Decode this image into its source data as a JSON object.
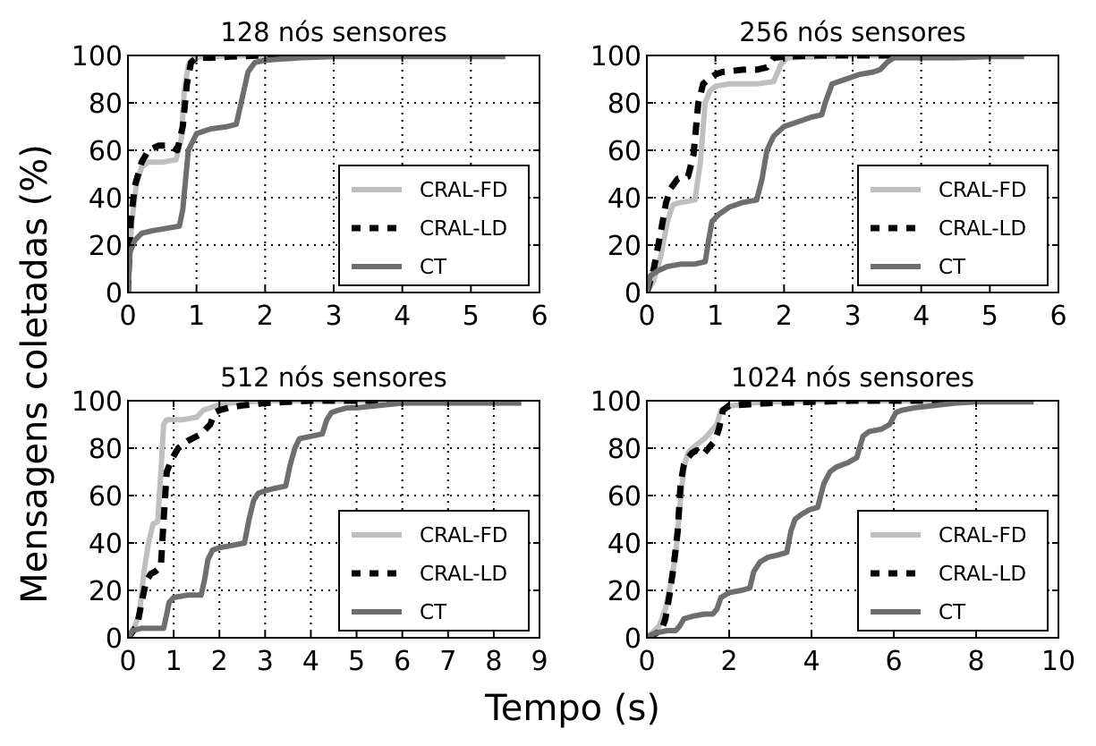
{
  "figure": {
    "xlabel": "Tempo (s)",
    "ylabel": "Mensagens coletadas (%)"
  },
  "colors": {
    "CRAL-FD": "#bfbfbf",
    "CRAL-LD": "#000000",
    "CT": "#6e6e6e"
  },
  "chart_data": [
    {
      "type": "line",
      "title": "128 nós sensores",
      "xlim": [
        0,
        6
      ],
      "ylim": [
        0,
        100
      ],
      "xticks": [
        0,
        1,
        2,
        3,
        4,
        5,
        6
      ],
      "yticks": [
        0,
        20,
        40,
        60,
        80,
        100
      ],
      "grid": true,
      "legend_position": "lower-right",
      "series": [
        {
          "name": "CRAL-FD",
          "style": "solid",
          "x": [
            0,
            0.05,
            0.12,
            0.2,
            0.3,
            0.5,
            0.7,
            0.78,
            0.82,
            0.88,
            0.95,
            1.1,
            1.5,
            2,
            3,
            4,
            5,
            5.5
          ],
          "y": [
            0,
            28,
            45,
            53,
            55,
            55,
            56,
            65,
            85,
            96,
            99,
            99.5,
            99.8,
            100,
            100,
            100,
            100,
            100
          ]
        },
        {
          "name": "CRAL-LD",
          "style": "dashed",
          "x": [
            0,
            0.04,
            0.1,
            0.2,
            0.3,
            0.45,
            0.6,
            0.72,
            0.8,
            0.86,
            0.92,
            1.0,
            1.2,
            1.5,
            2,
            3,
            4,
            5,
            5.5
          ],
          "y": [
            0,
            30,
            45,
            55,
            60,
            62,
            62,
            60,
            70,
            88,
            97,
            99,
            99,
            99.5,
            100,
            100,
            100,
            100,
            100
          ]
        },
        {
          "name": "CT",
          "style": "solid",
          "x": [
            0,
            0.03,
            0.1,
            0.2,
            0.35,
            0.55,
            0.75,
            0.8,
            0.88,
            1.0,
            1.2,
            1.45,
            1.58,
            1.65,
            1.75,
            1.85,
            2.0,
            2.5,
            3,
            4,
            5,
            5.5
          ],
          "y": [
            0,
            17,
            22,
            25,
            26,
            27,
            28,
            35,
            60,
            67,
            69,
            70,
            71,
            80,
            93,
            97,
            98,
            99,
            99.5,
            99.5,
            99.5,
            99.5
          ]
        }
      ]
    },
    {
      "type": "line",
      "title": "256 nós sensores",
      "xlim": [
        0,
        6
      ],
      "ylim": [
        0,
        100
      ],
      "xticks": [
        0,
        1,
        2,
        3,
        4,
        5,
        6
      ],
      "yticks": [
        0,
        20,
        40,
        60,
        80,
        100
      ],
      "grid": true,
      "legend_position": "lower-right",
      "series": [
        {
          "name": "CRAL-FD",
          "style": "solid",
          "x": [
            0,
            0.1,
            0.2,
            0.3,
            0.38,
            0.5,
            0.7,
            0.78,
            0.85,
            0.92,
            1.0,
            1.2,
            1.6,
            1.85,
            1.95,
            2.05,
            2.5,
            3,
            4,
            5,
            5.5
          ],
          "y": [
            0,
            5,
            15,
            30,
            37,
            38,
            39,
            55,
            80,
            85,
            87,
            88,
            88,
            89,
            96,
            99,
            99.5,
            100,
            100,
            100,
            100
          ]
        },
        {
          "name": "CRAL-LD",
          "style": "dashed",
          "x": [
            0,
            0.1,
            0.2,
            0.28,
            0.35,
            0.45,
            0.6,
            0.68,
            0.75,
            0.82,
            0.9,
            1.0,
            1.1,
            1.4,
            1.6,
            1.75,
            1.85,
            2.0,
            2.5,
            3,
            4,
            5
          ],
          "y": [
            0,
            10,
            25,
            38,
            44,
            48,
            49,
            58,
            80,
            88,
            90,
            92,
            93,
            94,
            94,
            95,
            99,
            99.5,
            100,
            100,
            100,
            100
          ]
        },
        {
          "name": "CT",
          "style": "solid",
          "x": [
            0,
            0.05,
            0.15,
            0.3,
            0.5,
            0.7,
            0.85,
            0.9,
            0.95,
            1.05,
            1.2,
            1.4,
            1.6,
            1.68,
            1.75,
            1.85,
            2.0,
            2.2,
            2.4,
            2.55,
            2.6,
            2.7,
            2.9,
            3.1,
            3.3,
            3.4,
            3.5,
            3.6,
            4,
            4.5,
            5,
            5.5
          ],
          "y": [
            0,
            7,
            9,
            11,
            12,
            12,
            13,
            22,
            30,
            33,
            36,
            38,
            39,
            48,
            60,
            66,
            70,
            72,
            74,
            75,
            80,
            88,
            90,
            92,
            93,
            94,
            97,
            99,
            99,
            99,
            99.5,
            99.5
          ]
        }
      ]
    },
    {
      "type": "line",
      "title": "512 nós sensores",
      "xlim": [
        0,
        9
      ],
      "ylim": [
        0,
        100
      ],
      "xticks": [
        0,
        1,
        2,
        3,
        4,
        5,
        6,
        7,
        8,
        9
      ],
      "yticks": [
        0,
        20,
        40,
        60,
        80,
        100
      ],
      "grid": true,
      "legend_position": "lower-right",
      "series": [
        {
          "name": "CRAL-FD",
          "style": "solid",
          "x": [
            0,
            0.15,
            0.25,
            0.35,
            0.45,
            0.55,
            0.65,
            0.72,
            0.78,
            0.85,
            0.95,
            1.2,
            1.5,
            1.65,
            1.8,
            1.95,
            2.2,
            3,
            4,
            5,
            6,
            7,
            8,
            8.6
          ],
          "y": [
            0,
            5,
            10,
            28,
            40,
            48,
            49,
            70,
            90,
            92,
            92,
            92,
            93,
            96,
            97,
            98,
            99,
            100,
            100,
            100,
            100,
            100,
            100,
            100
          ]
        },
        {
          "name": "CRAL-LD",
          "style": "dashed",
          "x": [
            0,
            0.2,
            0.3,
            0.4,
            0.5,
            0.6,
            0.72,
            0.78,
            0.85,
            0.95,
            1.1,
            1.3,
            1.5,
            1.6,
            1.7,
            1.8,
            1.9,
            2.0,
            2.2,
            2.5,
            3,
            4,
            5,
            6,
            7,
            8,
            8.6
          ],
          "y": [
            0,
            5,
            15,
            24,
            27,
            28,
            30,
            50,
            70,
            75,
            80,
            83,
            85,
            86,
            88,
            90,
            95,
            96,
            97,
            98,
            99,
            100,
            100,
            100,
            100,
            100,
            100
          ]
        },
        {
          "name": "CT",
          "style": "solid",
          "x": [
            0,
            0.1,
            0.3,
            0.6,
            0.78,
            0.85,
            0.9,
            1.0,
            1.3,
            1.6,
            1.68,
            1.75,
            1.85,
            2.0,
            2.3,
            2.55,
            2.65,
            2.75,
            2.85,
            3.0,
            3.2,
            3.45,
            3.55,
            3.65,
            3.75,
            4.0,
            4.25,
            4.35,
            4.45,
            4.6,
            4.8,
            5.0,
            5.5,
            6,
            7,
            8,
            8.6
          ],
          "y": [
            0,
            3,
            4,
            4,
            4,
            10,
            15,
            17,
            18,
            18,
            25,
            33,
            37,
            38,
            39,
            40,
            50,
            58,
            61,
            62,
            63,
            64,
            73,
            80,
            84,
            85,
            86,
            92,
            95,
            96,
            97,
            97,
            98,
            99,
            99,
            99,
            99
          ]
        }
      ]
    },
    {
      "type": "line",
      "title": "1024 nós sensores",
      "xlim": [
        0,
        10
      ],
      "ylim": [
        0,
        100
      ],
      "xticks": [
        0,
        2,
        4,
        6,
        8,
        10
      ],
      "yticks": [
        0,
        20,
        40,
        60,
        80,
        100
      ],
      "grid": true,
      "legend_position": "lower-right",
      "series": [
        {
          "name": "CRAL-FD",
          "style": "solid",
          "x": [
            0,
            0.3,
            0.45,
            0.6,
            0.7,
            0.8,
            0.9,
            1.0,
            1.1,
            1.25,
            1.4,
            1.55,
            1.7,
            1.8,
            1.9,
            2.1,
            2.5,
            3,
            4,
            5,
            6,
            7,
            8,
            9,
            9.4
          ],
          "y": [
            0,
            5,
            12,
            25,
            35,
            55,
            72,
            78,
            80,
            82,
            84,
            87,
            90,
            96,
            97,
            98,
            99,
            99.5,
            100,
            100,
            100,
            100,
            100,
            100,
            100
          ]
        },
        {
          "name": "CRAL-LD",
          "style": "dashed",
          "x": [
            0,
            0.35,
            0.45,
            0.55,
            0.65,
            0.75,
            0.82,
            0.9,
            1.0,
            1.1,
            1.2,
            1.35,
            1.5,
            1.65,
            1.75,
            1.85,
            2.0,
            2.5,
            3,
            4,
            5,
            6,
            7,
            8,
            9,
            9.4
          ],
          "y": [
            0,
            3,
            8,
            18,
            30,
            45,
            65,
            73,
            76,
            78,
            79,
            77,
            80,
            83,
            88,
            96,
            98,
            98.5,
            99,
            99.5,
            100,
            100,
            100,
            100,
            100,
            100
          ]
        },
        {
          "name": "CT",
          "style": "solid",
          "x": [
            0,
            0.2,
            0.5,
            0.7,
            0.8,
            0.9,
            1.1,
            1.4,
            1.6,
            1.7,
            1.8,
            2.0,
            2.3,
            2.5,
            2.6,
            2.75,
            2.95,
            3.2,
            3.4,
            3.5,
            3.6,
            3.75,
            3.95,
            4.15,
            4.3,
            4.45,
            4.6,
            4.9,
            5.1,
            5.25,
            5.4,
            5.7,
            5.9,
            6.05,
            6.2,
            6.5,
            7,
            7.5,
            8,
            9,
            9.4
          ],
          "y": [
            0,
            2,
            3,
            3,
            5,
            8,
            9,
            10,
            10,
            12,
            17,
            19,
            20,
            21,
            28,
            32,
            34,
            35,
            36,
            45,
            50,
            52,
            54,
            55,
            65,
            70,
            72,
            74,
            76,
            85,
            87,
            88,
            90,
            95,
            96,
            97,
            98,
            99,
            99.5,
            99.5,
            99.5
          ]
        }
      ]
    }
  ]
}
